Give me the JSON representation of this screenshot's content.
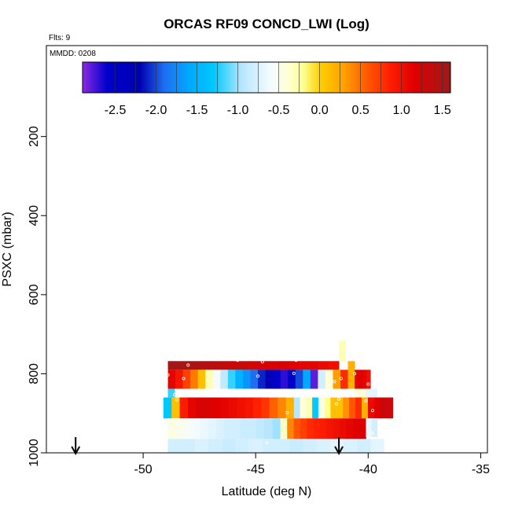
{
  "chart_data": {
    "type": "heatmap",
    "title": "ORCAS RF09 CONCD_LWI (Log)",
    "subtitle": "Flts: 9",
    "annotation": "MMDD: 0208",
    "xlabel": "Latitude (deg N)",
    "ylabel": "PSXC (mbar)",
    "xlim": [
      -54.3,
      -34.7
    ],
    "ylim": [
      1000,
      -30
    ],
    "y_reversed": true,
    "x_ticks": [
      -50,
      -45,
      -40,
      -35
    ],
    "y_ticks": [
      200,
      400,
      600,
      800,
      1000
    ],
    "grid": false,
    "colorbar": {
      "range": [
        -2.9,
        1.6
      ],
      "ticks": [
        "-2.5",
        "-2.0",
        "-1.5",
        "-1.0",
        "-0.5",
        "0.0",
        "0.5",
        "1.0",
        "1.5"
      ],
      "tick_values": [
        -2.5,
        -2.0,
        -1.5,
        -1.0,
        -0.5,
        0.0,
        0.5,
        1.0,
        1.5
      ],
      "stops": [
        [
          -2.9,
          "#8a2be2"
        ],
        [
          -2.6,
          "#0000cd"
        ],
        [
          -2.2,
          "#0000b0"
        ],
        [
          -1.9,
          "#1e6ff0"
        ],
        [
          -1.6,
          "#00a8ff"
        ],
        [
          -1.3,
          "#00c8ff"
        ],
        [
          -0.95,
          "#b8e6ff"
        ],
        [
          -0.6,
          "#f4fbff"
        ],
        [
          -0.4,
          "#ffffd8"
        ],
        [
          -0.2,
          "#ffff90"
        ],
        [
          0.0,
          "#ffd000"
        ],
        [
          0.3,
          "#ffa000"
        ],
        [
          0.55,
          "#ff6000"
        ],
        [
          0.85,
          "#ff2000"
        ],
        [
          1.15,
          "#e00000"
        ],
        [
          1.6,
          "#9b1a1a"
        ]
      ]
    },
    "segments": [
      {
        "p_top": 768,
        "p_bot": 790,
        "x0": -48.9,
        "x1": -41.3,
        "values": [
          1.55,
          1.55,
          1.5,
          1.45,
          1.4,
          1.35,
          1.3,
          1.3,
          1.25,
          1.2,
          1.2,
          1.2,
          1.15,
          1.1,
          1.1,
          1.05,
          1.0
        ]
      },
      {
        "p_top": 716,
        "p_bot": 768,
        "x0": -41.3,
        "x1": -41.0,
        "values": [
          -0.3
        ]
      },
      {
        "p_top": 790,
        "p_bot": 838,
        "x0": -48.9,
        "x1": -40.9,
        "values": [
          1.1,
          0.95,
          0.7,
          0.45,
          0.1,
          -0.3,
          -0.6,
          -0.9,
          -1.2,
          -1.5,
          -1.7,
          -1.9,
          -2.1,
          -2.3,
          -2.5,
          -2.7,
          -2.5,
          -2.0,
          -1.6,
          -2.8,
          -0.8,
          -0.4,
          0.3,
          0.8
        ]
      },
      {
        "p_top": 768,
        "p_bot": 838,
        "x0": -40.9,
        "x1": -40.6,
        "values": [
          0.2
        ]
      },
      {
        "p_top": 790,
        "p_bot": 838,
        "x0": -40.6,
        "x1": -39.9,
        "values": [
          1.1,
          1.15,
          1.1,
          1.0
        ]
      },
      {
        "p_top": 838,
        "p_bot": 860,
        "x0": -40.6,
        "x1": -39.6,
        "values": [
          -0.4,
          -0.7
        ]
      },
      {
        "p_top": 838,
        "p_bot": 860,
        "x0": -48.9,
        "x1": -48.6,
        "values": [
          -1.2
        ]
      },
      {
        "p_top": 860,
        "p_bot": 913,
        "x0": -49.1,
        "x1": -43.3,
        "values": [
          -1.3,
          0.1,
          0.9,
          1.1,
          1.2,
          1.2,
          1.15,
          1.1,
          1.05,
          1.0,
          0.95,
          0.85,
          0.75,
          0.55,
          0.4,
          0.2
        ]
      },
      {
        "p_top": 860,
        "p_bot": 913,
        "x0": -43.3,
        "x1": -41.4,
        "values": [
          -0.95,
          -0.4,
          -0.3,
          -1.3,
          -0.45,
          -0.2,
          0.1
        ]
      },
      {
        "p_top": 860,
        "p_bot": 913,
        "x0": -41.4,
        "x1": -38.9,
        "values": [
          0.1,
          0.35,
          0.6,
          0.8,
          0.2,
          1.05,
          1.15,
          1.3,
          1.25
        ]
      },
      {
        "p_top": 913,
        "p_bot": 965,
        "x0": -48.9,
        "x1": -43.9,
        "values": [
          -0.45,
          -0.5,
          -0.55,
          -0.6,
          -0.65,
          -0.7,
          -0.75,
          -0.8,
          -0.8,
          -0.85,
          -0.85,
          -0.9,
          -0.95,
          -1.0
        ]
      },
      {
        "p_top": 913,
        "p_bot": 965,
        "x0": -43.9,
        "x1": -43.6,
        "values": [
          -0.35
        ]
      },
      {
        "p_top": 913,
        "p_bot": 965,
        "x0": -43.6,
        "x1": -40.1,
        "values": [
          0.4,
          0.6,
          0.7,
          0.8,
          0.85,
          0.9,
          0.95,
          1.0,
          1.05,
          1.1,
          1.15,
          1.2
        ]
      },
      {
        "p_top": 913,
        "p_bot": 960,
        "x0": -40.1,
        "x1": -39.6,
        "values": [
          -0.65,
          -0.8
        ]
      },
      {
        "p_top": 965,
        "p_bot": 1000,
        "x0": -48.9,
        "x1": -39.3,
        "values": [
          -0.8,
          -0.8,
          -0.75,
          -0.8,
          -0.85,
          -0.8,
          -0.75,
          -0.8,
          -0.8,
          -0.85,
          -0.8,
          -0.75,
          -0.7,
          -0.75,
          -0.8,
          -0.7
        ]
      }
    ],
    "markers": [
      {
        "x": -48.0,
        "p": 778
      },
      {
        "x": -45.8,
        "p": 766
      },
      {
        "x": -44.7,
        "p": 770
      },
      {
        "x": -43.2,
        "p": 766
      },
      {
        "x": -41.2,
        "p": 773
      },
      {
        "x": -48.9,
        "p": 803
      },
      {
        "x": -48.2,
        "p": 812
      },
      {
        "x": -44.9,
        "p": 806
      },
      {
        "x": -43.3,
        "p": 799
      },
      {
        "x": -41.5,
        "p": 820
      },
      {
        "x": -41.2,
        "p": 812
      },
      {
        "x": -40.6,
        "p": 800
      },
      {
        "x": -40.0,
        "p": 826
      },
      {
        "x": -48.6,
        "p": 853
      },
      {
        "x": -48.5,
        "p": 866
      },
      {
        "x": -43.6,
        "p": 898
      },
      {
        "x": -41.4,
        "p": 876
      },
      {
        "x": -41.3,
        "p": 864
      },
      {
        "x": -40.1,
        "p": 868
      },
      {
        "x": -39.8,
        "p": 893
      },
      {
        "x": -39.8,
        "p": 950
      },
      {
        "x": -44.5,
        "p": 975
      }
    ],
    "arrows": [
      {
        "x": -53.0
      },
      {
        "x": -41.3
      }
    ]
  }
}
